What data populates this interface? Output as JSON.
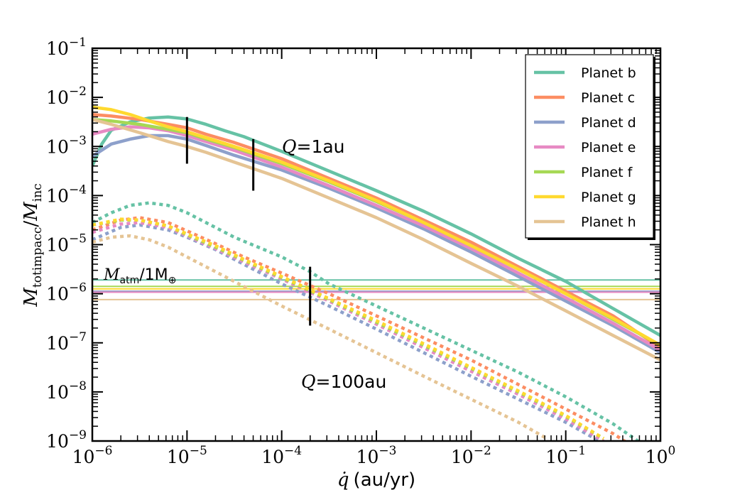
{
  "chart_data": {
    "type": "line",
    "xscale": "log",
    "yscale": "log",
    "xlim_exp": [
      -6,
      0
    ],
    "ylim_exp": [
      -9,
      -1
    ],
    "xlabel": "(au/yr)",
    "xlabel_symbol": "q̇",
    "ylabel_main": "M",
    "ylabel_sub1": "totimpacc",
    "ylabel_sep": "/",
    "ylabel_sub2": "inc",
    "x_tick_base": "10",
    "y_tick_base": "10",
    "x_tick_exponents": [
      "−6",
      "−5",
      "−4",
      "−3",
      "−2",
      "−1",
      "0"
    ],
    "y_tick_exponents": [
      "−9",
      "−8",
      "−7",
      "−6",
      "−5",
      "−4",
      "−3",
      "−2",
      "−1"
    ],
    "annotations": {
      "q_high": {
        "symbol": "Q",
        "text": "=1au"
      },
      "q_low": {
        "symbol": "Q",
        "text": "=100au"
      },
      "matm": {
        "symbol": "M",
        "sub": "atm",
        "text": "/1M",
        "sub2": "⊕"
      }
    },
    "marker_bars": [
      {
        "x": -5.0,
        "y_low": -3.35,
        "y_high": -2.4
      },
      {
        "x": -4.3,
        "y_low": -3.9,
        "y_high": -2.85
      },
      {
        "x": -3.7,
        "y_low": -6.65,
        "y_high": -5.45
      }
    ],
    "series": [
      {
        "name": "Planet b",
        "color": "#66c2a5",
        "atm_level": -5.72,
        "q1": [
          [
            -6.0,
            -3.4
          ],
          [
            -5.9,
            -2.95
          ],
          [
            -5.8,
            -2.67
          ],
          [
            -5.6,
            -2.5
          ],
          [
            -5.4,
            -2.42
          ],
          [
            -5.2,
            -2.4
          ],
          [
            -5.0,
            -2.44
          ],
          [
            -4.8,
            -2.55
          ],
          [
            -4.6,
            -2.68
          ],
          [
            -4.4,
            -2.8
          ],
          [
            -4.2,
            -2.95
          ],
          [
            -4.0,
            -3.1
          ],
          [
            -3.5,
            -3.5
          ],
          [
            -3.0,
            -3.9
          ],
          [
            -2.5,
            -4.32
          ],
          [
            -2.0,
            -4.78
          ],
          [
            -1.5,
            -5.28
          ],
          [
            -1.0,
            -5.75
          ],
          [
            -0.5,
            -6.3
          ],
          [
            0.0,
            -6.85
          ]
        ],
        "q100": [
          [
            -6.0,
            -4.55
          ],
          [
            -5.8,
            -4.35
          ],
          [
            -5.6,
            -4.2
          ],
          [
            -5.4,
            -4.15
          ],
          [
            -5.2,
            -4.2
          ],
          [
            -5.0,
            -4.35
          ],
          [
            -4.8,
            -4.55
          ],
          [
            -4.5,
            -4.85
          ],
          [
            -4.0,
            -5.25
          ],
          [
            -3.7,
            -5.55
          ],
          [
            -3.5,
            -5.8
          ],
          [
            -3.0,
            -6.25
          ],
          [
            -2.5,
            -6.7
          ],
          [
            -2.0,
            -7.15
          ],
          [
            -1.5,
            -7.6
          ],
          [
            -1.0,
            -8.1
          ],
          [
            -0.5,
            -8.65
          ],
          [
            -0.2,
            -9.05
          ]
        ]
      },
      {
        "name": "Planet c",
        "color": "#fc8d62",
        "atm_level": -5.95,
        "q1": [
          [
            -6.0,
            -2.35
          ],
          [
            -5.8,
            -2.38
          ],
          [
            -5.5,
            -2.45
          ],
          [
            -5.2,
            -2.55
          ],
          [
            -5.0,
            -2.62
          ],
          [
            -4.8,
            -2.75
          ],
          [
            -4.5,
            -2.92
          ],
          [
            -4.0,
            -3.25
          ],
          [
            -3.5,
            -3.65
          ],
          [
            -3.0,
            -4.05
          ],
          [
            -2.5,
            -4.5
          ],
          [
            -2.0,
            -4.95
          ],
          [
            -1.5,
            -5.45
          ],
          [
            -1.0,
            -5.95
          ],
          [
            -0.5,
            -6.45
          ],
          [
            0.0,
            -7.1
          ]
        ],
        "q100": [
          [
            -6.0,
            -4.7
          ],
          [
            -5.7,
            -4.5
          ],
          [
            -5.5,
            -4.45
          ],
          [
            -5.2,
            -4.55
          ],
          [
            -5.0,
            -4.72
          ],
          [
            -4.7,
            -4.98
          ],
          [
            -4.4,
            -5.25
          ],
          [
            -4.0,
            -5.58
          ],
          [
            -3.5,
            -6.0
          ],
          [
            -3.0,
            -6.45
          ],
          [
            -2.5,
            -6.9
          ],
          [
            -2.0,
            -7.35
          ],
          [
            -1.5,
            -7.85
          ],
          [
            -1.0,
            -8.35
          ],
          [
            -0.5,
            -8.85
          ],
          [
            -0.3,
            -9.1
          ]
        ]
      },
      {
        "name": "Planet d",
        "color": "#8da0cb",
        "atm_level": -5.95,
        "q1": [
          [
            -6.0,
            -3.2
          ],
          [
            -5.8,
            -2.95
          ],
          [
            -5.6,
            -2.85
          ],
          [
            -5.4,
            -2.78
          ],
          [
            -5.2,
            -2.78
          ],
          [
            -5.0,
            -2.85
          ],
          [
            -4.8,
            -2.98
          ],
          [
            -4.5,
            -3.18
          ],
          [
            -4.0,
            -3.48
          ],
          [
            -3.5,
            -3.85
          ],
          [
            -3.0,
            -4.25
          ],
          [
            -2.5,
            -4.68
          ],
          [
            -2.0,
            -5.15
          ],
          [
            -1.5,
            -5.65
          ],
          [
            -1.0,
            -6.15
          ],
          [
            -0.5,
            -6.65
          ],
          [
            0.0,
            -7.2
          ]
        ],
        "q100": [
          [
            -6.0,
            -4.9
          ],
          [
            -5.7,
            -4.65
          ],
          [
            -5.5,
            -4.6
          ],
          [
            -5.2,
            -4.7
          ],
          [
            -5.0,
            -4.85
          ],
          [
            -4.7,
            -5.1
          ],
          [
            -4.4,
            -5.4
          ],
          [
            -4.0,
            -5.8
          ],
          [
            -3.5,
            -6.25
          ],
          [
            -3.0,
            -6.72
          ],
          [
            -2.5,
            -7.2
          ],
          [
            -2.0,
            -7.68
          ],
          [
            -1.5,
            -8.15
          ],
          [
            -1.0,
            -8.62
          ],
          [
            -0.6,
            -9.05
          ]
        ]
      },
      {
        "name": "Planet e",
        "color": "#e78ac3",
        "atm_level": -5.97,
        "q1": [
          [
            -6.0,
            -2.75
          ],
          [
            -5.8,
            -2.65
          ],
          [
            -5.6,
            -2.6
          ],
          [
            -5.4,
            -2.62
          ],
          [
            -5.2,
            -2.68
          ],
          [
            -5.0,
            -2.78
          ],
          [
            -4.8,
            -2.9
          ],
          [
            -4.5,
            -3.08
          ],
          [
            -4.0,
            -3.42
          ],
          [
            -3.5,
            -3.8
          ],
          [
            -3.0,
            -4.2
          ],
          [
            -2.5,
            -4.62
          ],
          [
            -2.0,
            -5.08
          ],
          [
            -1.5,
            -5.58
          ],
          [
            -1.0,
            -6.08
          ],
          [
            -0.5,
            -6.6
          ],
          [
            0.0,
            -7.15
          ]
        ],
        "q100": [
          [
            -6.0,
            -4.75
          ],
          [
            -5.7,
            -4.58
          ],
          [
            -5.5,
            -4.55
          ],
          [
            -5.2,
            -4.65
          ],
          [
            -5.0,
            -4.82
          ],
          [
            -4.7,
            -5.08
          ],
          [
            -4.4,
            -5.35
          ],
          [
            -4.0,
            -5.7
          ],
          [
            -3.5,
            -6.15
          ],
          [
            -3.0,
            -6.62
          ],
          [
            -2.5,
            -7.1
          ],
          [
            -2.0,
            -7.58
          ],
          [
            -1.5,
            -8.05
          ],
          [
            -1.0,
            -8.55
          ],
          [
            -0.6,
            -9.0
          ]
        ]
      },
      {
        "name": "Planet f",
        "color": "#a6d854",
        "atm_level": -5.85,
        "q1": [
          [
            -6.0,
            -2.45
          ],
          [
            -5.8,
            -2.48
          ],
          [
            -5.5,
            -2.55
          ],
          [
            -5.2,
            -2.65
          ],
          [
            -5.0,
            -2.72
          ],
          [
            -4.8,
            -2.85
          ],
          [
            -4.5,
            -3.02
          ],
          [
            -4.0,
            -3.35
          ],
          [
            -3.5,
            -3.72
          ],
          [
            -3.0,
            -4.12
          ],
          [
            -2.5,
            -4.55
          ],
          [
            -2.0,
            -5.02
          ],
          [
            -1.5,
            -5.5
          ],
          [
            -1.0,
            -6.0
          ],
          [
            -0.5,
            -6.52
          ],
          [
            0.0,
            -7.05
          ]
        ],
        "q100": [
          [
            -6.0,
            -4.6
          ],
          [
            -5.7,
            -4.5
          ],
          [
            -5.5,
            -4.5
          ],
          [
            -5.2,
            -4.62
          ],
          [
            -5.0,
            -4.8
          ],
          [
            -4.7,
            -5.05
          ],
          [
            -4.4,
            -5.32
          ],
          [
            -4.0,
            -5.67
          ],
          [
            -3.5,
            -6.12
          ],
          [
            -3.0,
            -6.58
          ],
          [
            -2.5,
            -7.05
          ],
          [
            -2.0,
            -7.52
          ],
          [
            -1.5,
            -8.0
          ],
          [
            -1.0,
            -8.5
          ],
          [
            -0.6,
            -8.95
          ]
        ]
      },
      {
        "name": "Planet g",
        "color": "#ffd92f",
        "atm_level": -5.9,
        "q1": [
          [
            -6.0,
            -2.2
          ],
          [
            -5.8,
            -2.25
          ],
          [
            -5.6,
            -2.35
          ],
          [
            -5.4,
            -2.48
          ],
          [
            -5.2,
            -2.6
          ],
          [
            -5.0,
            -2.7
          ],
          [
            -4.8,
            -2.82
          ],
          [
            -4.5,
            -3.0
          ],
          [
            -4.0,
            -3.32
          ],
          [
            -3.5,
            -3.7
          ],
          [
            -3.0,
            -4.1
          ],
          [
            -2.5,
            -4.55
          ],
          [
            -2.0,
            -5.02
          ],
          [
            -1.5,
            -5.5
          ],
          [
            -1.0,
            -6.0
          ],
          [
            -0.5,
            -6.5
          ],
          [
            0.0,
            -7.05
          ]
        ],
        "q100": [
          [
            -6.0,
            -4.6
          ],
          [
            -5.7,
            -4.48
          ],
          [
            -5.5,
            -4.5
          ],
          [
            -5.2,
            -4.62
          ],
          [
            -5.0,
            -4.78
          ],
          [
            -4.7,
            -5.02
          ],
          [
            -4.4,
            -5.3
          ],
          [
            -4.0,
            -5.65
          ],
          [
            -3.5,
            -6.1
          ],
          [
            -3.0,
            -6.55
          ],
          [
            -2.5,
            -7.02
          ],
          [
            -2.0,
            -7.5
          ],
          [
            -1.5,
            -7.98
          ],
          [
            -1.0,
            -8.48
          ],
          [
            -0.6,
            -8.95
          ]
        ]
      },
      {
        "name": "Planet h",
        "color": "#e5c494",
        "atm_level": -6.12,
        "q1": [
          [
            -6.0,
            -2.45
          ],
          [
            -5.8,
            -2.55
          ],
          [
            -5.5,
            -2.72
          ],
          [
            -5.2,
            -2.9
          ],
          [
            -5.0,
            -3.0
          ],
          [
            -4.8,
            -3.12
          ],
          [
            -4.5,
            -3.32
          ],
          [
            -4.0,
            -3.65
          ],
          [
            -3.5,
            -4.05
          ],
          [
            -3.0,
            -4.45
          ],
          [
            -2.5,
            -4.9
          ],
          [
            -2.0,
            -5.38
          ],
          [
            -1.5,
            -5.85
          ],
          [
            -1.0,
            -6.35
          ],
          [
            -0.5,
            -6.85
          ],
          [
            0.0,
            -7.35
          ]
        ],
        "q100": [
          [
            -6.0,
            -4.95
          ],
          [
            -5.8,
            -4.85
          ],
          [
            -5.6,
            -4.82
          ],
          [
            -5.4,
            -4.9
          ],
          [
            -5.2,
            -5.05
          ],
          [
            -5.0,
            -5.25
          ],
          [
            -4.7,
            -5.55
          ],
          [
            -4.4,
            -5.85
          ],
          [
            -4.0,
            -6.25
          ],
          [
            -3.5,
            -6.72
          ],
          [
            -3.0,
            -7.2
          ],
          [
            -2.5,
            -7.68
          ],
          [
            -2.0,
            -8.15
          ],
          [
            -1.5,
            -8.62
          ],
          [
            -1.2,
            -8.95
          ]
        ]
      }
    ]
  }
}
